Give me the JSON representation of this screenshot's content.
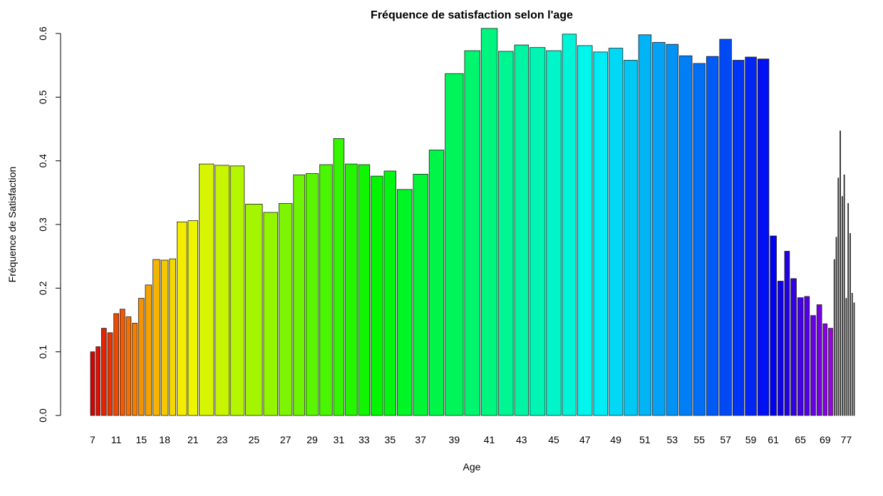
{
  "chart_data": {
    "type": "bar",
    "title": "Fréquence de satisfaction selon l'age",
    "x_label": "Age",
    "y_label": "Fréquence de Satisfaction",
    "categories": [
      "7",
      null,
      null,
      null,
      "11",
      null,
      null,
      null,
      "15",
      null,
      null,
      "18",
      null,
      null,
      "21",
      null,
      "23",
      null,
      "25",
      null,
      "27",
      null,
      "29",
      null,
      "31",
      null,
      "33",
      null,
      "35",
      null,
      "37",
      null,
      "39",
      null,
      "41",
      null,
      "43",
      null,
      "45",
      null,
      "47",
      null,
      "49",
      null,
      "51",
      null,
      "53",
      null,
      "55",
      null,
      "57",
      null,
      "59",
      null,
      "61",
      null,
      null,
      null,
      "65",
      null,
      null,
      null,
      "69",
      null,
      null,
      null,
      null,
      null,
      null,
      null,
      "77",
      null,
      null,
      null,
      null
    ],
    "values": [
      0.1,
      0.108,
      0.137,
      0.13,
      0.16,
      0.167,
      0.155,
      0.145,
      0.184,
      0.205,
      0.245,
      0.244,
      0.246,
      0.304,
      0.306,
      0.395,
      0.393,
      0.392,
      0.332,
      0.319,
      0.333,
      0.378,
      0.38,
      0.394,
      0.435,
      0.395,
      0.394,
      0.376,
      0.384,
      0.355,
      0.379,
      0.417,
      0.537,
      0.573,
      0.608,
      0.572,
      0.582,
      0.578,
      0.573,
      0.599,
      0.581,
      0.571,
      0.577,
      0.558,
      0.598,
      0.586,
      0.583,
      0.565,
      0.553,
      0.564,
      0.591,
      0.558,
      0.563,
      0.56,
      0.282,
      0.211,
      0.258,
      0.215,
      0.185,
      0.187,
      0.157,
      0.174,
      0.144,
      0.137,
      0.245,
      0.28,
      0.373,
      0.447,
      0.344,
      0.378,
      0.184,
      0.333,
      0.286,
      0.192,
      0.177
    ],
    "widths": [
      6,
      6,
      7,
      7,
      7,
      7,
      7,
      7,
      8,
      9,
      10,
      10,
      9,
      14,
      14,
      21,
      20,
      20,
      24,
      20,
      19,
      16,
      18,
      18,
      15,
      17,
      16,
      17,
      17,
      21,
      21,
      21,
      26,
      22,
      23,
      21,
      20,
      22,
      21,
      20,
      21,
      20,
      20,
      19,
      18,
      18,
      17,
      18,
      17,
      17,
      17,
      16,
      16,
      16,
      9,
      8,
      7,
      8,
      8,
      7,
      7,
      7,
      6,
      6,
      1,
      1,
      1,
      1,
      1,
      1,
      1,
      1,
      1,
      1,
      1
    ],
    "colors": [
      "hsl(0,100%,42%)",
      "hsl(4,100%,44%)",
      "hsl(9,100%,45%)",
      "hsl(13,100%,46%)",
      "hsl(18,100%,47%)",
      "hsl(22,100%,48%)",
      "hsl(27,100%,48%)",
      "hsl(31,100%,48%)",
      "hsl(36,100%,48%)",
      "hsl(40,100%,48%)",
      "hsl(44,100%,48%)",
      "hsl(49,100%,48%)",
      "hsl(53,100%,48%)",
      "hsl(58,100%,48%)",
      "hsl(62,100%,48%)",
      "hsl(67,100%,48%)",
      "hsl(71,100%,48%)",
      "hsl(76,100%,48%)",
      "hsl(80,100%,48%)",
      "hsl(84,100%,48%)",
      "hsl(89,100%,48%)",
      "hsl(93,100%,48%)",
      "hsl(98,100%,48%)",
      "hsl(102,100%,48%)",
      "hsl(107,100%,48%)",
      "hsl(111,100%,48%)",
      "hsl(116,100%,48%)",
      "hsl(120,100%,48%)",
      "hsl(124,100%,48%)",
      "hsl(129,100%,48%)",
      "hsl(133,100%,48%)",
      "hsl(138,100%,48%)",
      "hsl(142,100%,48%)",
      "hsl(147,100%,48%)",
      "hsl(151,100%,48%)",
      "hsl(156,100%,48%)",
      "hsl(160,100%,48%)",
      "hsl(164,100%,48%)",
      "hsl(169,100%,48%)",
      "hsl(173,100%,48%)",
      "hsl(178,100%,48%)",
      "hsl(182,100%,48%)",
      "hsl(187,100%,48%)",
      "hsl(191,100%,48%)",
      "hsl(196,100%,48%)",
      "hsl(200,100%,48%)",
      "hsl(204,100%,48%)",
      "hsl(209,100%,48%)",
      "hsl(213,100%,48%)",
      "hsl(218,100%,48%)",
      "hsl(222,100%,48%)",
      "hsl(227,100%,48%)",
      "hsl(231,100%,48%)",
      "hsl(236,100%,48%)",
      "hsl(240,100%,48%)",
      "hsl(244,100%,46%)",
      "hsl(249,100%,45%)",
      "hsl(253,100%,45%)",
      "hsl(258,100%,45%)",
      "hsl(262,100%,45%)",
      "hsl(267,100%,45%)",
      "hsl(271,100%,45%)",
      "hsl(276,100%,45%)",
      "hsl(280,100%,45%)",
      "#555555",
      "#555555",
      "#555555",
      "#555555",
      "#555555",
      "#555555",
      "#555555",
      "#555555",
      "#555555",
      "#555555",
      "#555555"
    ],
    "ylim": [
      0,
      0.6
    ],
    "yticks": [
      {
        "value": 0,
        "label": "0.0"
      },
      0.1,
      0.2,
      0.3,
      0.4,
      0.5,
      0.6
    ]
  }
}
